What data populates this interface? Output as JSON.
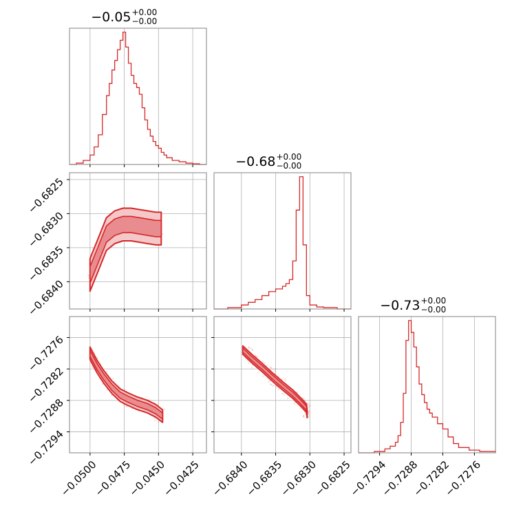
{
  "colors": {
    "accent": "#d62728",
    "fill_light": "#f4c7c8",
    "fill_mid": "#e98c8f",
    "grid": "#b0b0b0",
    "frame": "#808080"
  },
  "chart_data": {
    "type": "corner",
    "parameters": [
      {
        "title_main": "−0.05",
        "title_plus": "+0.00",
        "title_minus": "−0.00",
        "range": [
          -0.0515,
          -0.0415
        ],
        "ticks": [
          -0.05,
          -0.0475,
          -0.045,
          -0.0425
        ],
        "tick_labels": [
          "−0.0500",
          "−0.0475",
          "−0.0450",
          "−0.0425"
        ],
        "hist": {
          "x": [
            -0.0515,
            -0.051,
            -0.0505,
            -0.05,
            -0.0497,
            -0.0494,
            -0.0491,
            -0.0488,
            -0.0486,
            -0.0484,
            -0.0482,
            -0.048,
            -0.0478,
            -0.0476,
            -0.0474,
            -0.0472,
            -0.047,
            -0.0468,
            -0.0466,
            -0.0464,
            -0.0462,
            -0.046,
            -0.0458,
            -0.0456,
            -0.0454,
            -0.0452,
            -0.045,
            -0.0448,
            -0.0446,
            -0.0444,
            -0.044,
            -0.0435,
            -0.043,
            -0.0425,
            -0.042,
            -0.0415
          ],
          "y": [
            0,
            0.01,
            0.03,
            0.07,
            0.13,
            0.22,
            0.37,
            0.51,
            0.6,
            0.7,
            0.77,
            0.85,
            0.92,
            0.98,
            0.87,
            0.75,
            0.66,
            0.6,
            0.57,
            0.52,
            0.42,
            0.33,
            0.26,
            0.21,
            0.17,
            0.14,
            0.12,
            0.09,
            0.07,
            0.05,
            0.03,
            0.02,
            0.01,
            0.005,
            0,
            0
          ]
        }
      },
      {
        "title_main": "−0.68",
        "title_plus": "+0.00",
        "title_minus": "−0.00",
        "range": [
          -0.6844,
          -0.6824
        ],
        "ticks": [
          -0.684,
          -0.6835,
          -0.683,
          -0.6825
        ],
        "tick_labels": [
          "−0.6840",
          "−0.6835",
          "−0.6830",
          "−0.6825"
        ],
        "hist": {
          "x": [
            -0.6844,
            -0.6842,
            -0.684,
            -0.6839,
            -0.6838,
            -0.6837,
            -0.6836,
            -0.6835,
            -0.6834,
            -0.68335,
            -0.6833,
            -0.68325,
            -0.6832,
            -0.68315,
            -0.6831,
            -0.68305,
            -0.683,
            -0.6829,
            -0.6828,
            -0.6826,
            -0.6824
          ],
          "y": [
            0,
            0.01,
            0.03,
            0.05,
            0.07,
            0.1,
            0.13,
            0.15,
            0.17,
            0.19,
            0.22,
            0.36,
            0.74,
            0.99,
            0.48,
            0.1,
            0.03,
            0.015,
            0.01,
            0,
            0
          ]
        }
      },
      {
        "title_main": "−0.73",
        "title_plus": "+0.00",
        "title_minus": "−0.00",
        "range": [
          -0.7298,
          -0.7272
        ],
        "ticks": [
          -0.7294,
          -0.7288,
          -0.7282,
          -0.7276
        ],
        "tick_labels": [
          "−0.7294",
          "−0.7288",
          "−0.7282",
          "−0.7276"
        ],
        "hist": {
          "x": [
            -0.7298,
            -0.7295,
            -0.7293,
            -0.7292,
            -0.7291,
            -0.72905,
            -0.729,
            -0.72895,
            -0.7289,
            -0.72885,
            -0.7288,
            -0.72875,
            -0.7287,
            -0.72865,
            -0.7286,
            -0.72855,
            -0.7285,
            -0.72845,
            -0.7284,
            -0.7283,
            -0.7282,
            -0.7281,
            -0.728,
            -0.7279,
            -0.7277,
            -0.7275,
            -0.7272
          ],
          "y": [
            0,
            0.01,
            0.03,
            0.05,
            0.08,
            0.13,
            0.23,
            0.45,
            0.85,
            1.0,
            0.91,
            0.8,
            0.65,
            0.52,
            0.44,
            0.38,
            0.33,
            0.3,
            0.27,
            0.22,
            0.18,
            0.12,
            0.07,
            0.04,
            0.02,
            0.01,
            0
          ]
        }
      }
    ],
    "pairs": [
      {
        "row": 1,
        "col": 0,
        "ridge": [
          [
            -0.05,
            -0.6839
          ],
          [
            -0.0494,
            -0.6836
          ],
          [
            -0.0488,
            -0.6833
          ],
          [
            -0.0482,
            -0.6832
          ],
          [
            -0.0476,
            -0.68316
          ],
          [
            -0.047,
            -0.68316
          ],
          [
            -0.0464,
            -0.68318
          ],
          [
            -0.0458,
            -0.6832
          ],
          [
            -0.0452,
            -0.68322
          ],
          [
            -0.0448,
            -0.68322
          ]
        ],
        "width_in": 0.00012,
        "width_out": 0.00024
      },
      {
        "row": 2,
        "col": 0,
        "ridge": [
          [
            -0.05,
            -0.7279
          ],
          [
            -0.0495,
            -0.72815
          ],
          [
            -0.049,
            -0.72835
          ],
          [
            -0.0484,
            -0.72855
          ],
          [
            -0.0478,
            -0.7287
          ],
          [
            -0.0472,
            -0.72878
          ],
          [
            -0.0466,
            -0.72885
          ],
          [
            -0.0458,
            -0.72892
          ],
          [
            -0.0452,
            -0.729
          ],
          [
            -0.0447,
            -0.7291
          ]
        ],
        "width_in": 6e-05,
        "width_out": 0.00012
      },
      {
        "row": 2,
        "col": 1,
        "ridge": [
          [
            -0.68398,
            -0.72784
          ],
          [
            -0.68385,
            -0.728
          ],
          [
            -0.6837,
            -0.72817
          ],
          [
            -0.68355,
            -0.72835
          ],
          [
            -0.6834,
            -0.72852
          ],
          [
            -0.68325,
            -0.72868
          ],
          [
            -0.68312,
            -0.72885
          ],
          [
            -0.68305,
            -0.72895
          ],
          [
            -0.68304,
            -0.72905
          ]
        ],
        "width_in": 4e-05,
        "width_out": 8e-05
      }
    ]
  }
}
